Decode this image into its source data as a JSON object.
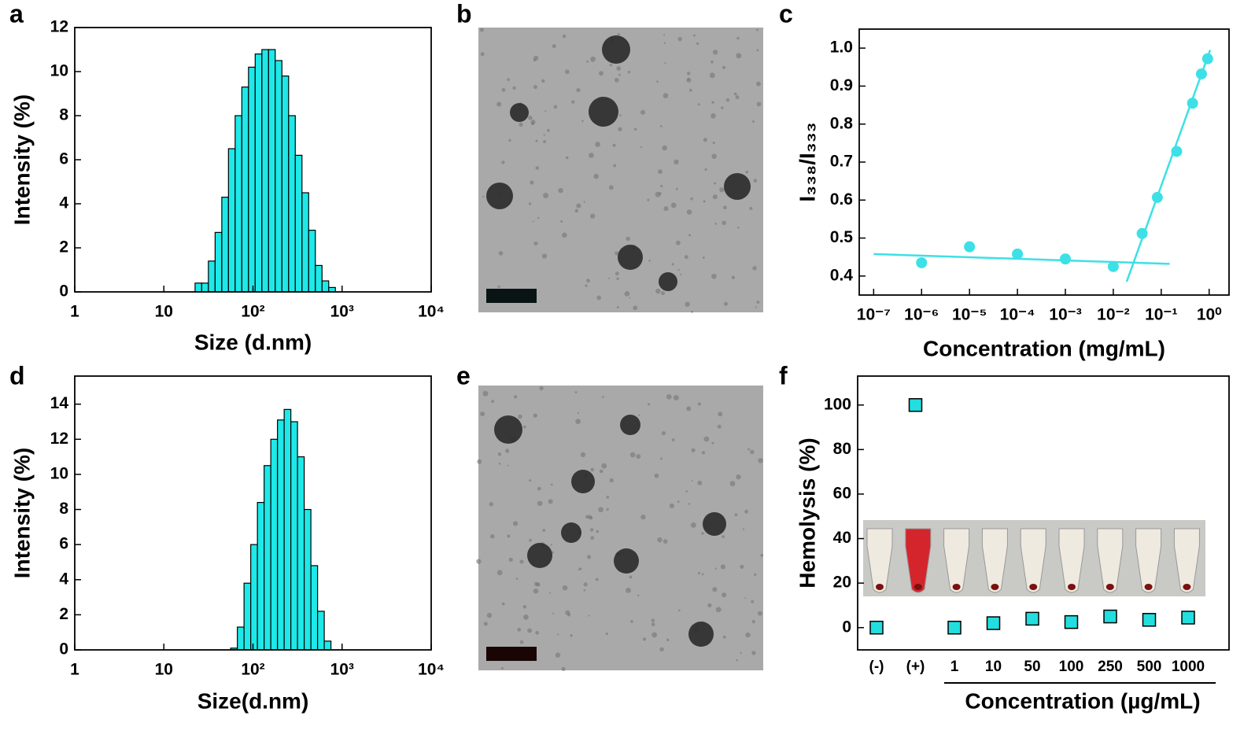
{
  "chart_data": [
    {
      "type": "histogram",
      "label": "a",
      "xlabel": "Size (d.nm)",
      "ylabel": "Intensity (%)",
      "log_x": true,
      "color": "#1ee8e8",
      "bins": [
        22.4,
        26.6,
        31.6,
        37.6,
        44.7,
        53.1,
        63.1,
        75.0,
        89.1,
        105.9,
        125.9,
        149.6,
        177.8,
        211.3,
        251.2,
        298.5,
        354.8,
        421.7,
        501.2,
        595.7,
        707.9,
        841.4
      ],
      "counts": [
        0.4,
        0.4,
        1.4,
        2.7,
        4.3,
        6.5,
        8.0,
        9.3,
        10.2,
        10.8,
        11.0,
        11.0,
        10.5,
        9.8,
        8.0,
        6.2,
        4.5,
        2.8,
        1.2,
        0.5,
        0.2
      ],
      "xlim": [
        1,
        10000
      ],
      "xticks": [
        1,
        10,
        {
          "value": 100,
          "label": "10²"
        },
        {
          "value": 1000,
          "label": "10³"
        },
        {
          "value": 10000,
          "label": "10⁴"
        }
      ],
      "ylim": [
        0,
        12
      ],
      "yticks": [
        0,
        2,
        4,
        6,
        8,
        10,
        12
      ]
    },
    {
      "type": "image",
      "label": "b"
    },
    {
      "type": "scatter",
      "label": "c",
      "xlabel": "Concentration (mg/mL)",
      "ylabel": "I₃₃₈/I₃₃₃",
      "log_x": true,
      "color": "#3de0e6",
      "x": [
        1e-06,
        1e-05,
        0.0001,
        0.001,
        0.01,
        0.04,
        0.083,
        0.21,
        0.45,
        0.69,
        0.93
      ],
      "values": [
        0.435,
        0.477,
        0.458,
        0.445,
        0.425,
        0.512,
        0.607,
        0.728,
        0.855,
        0.932,
        0.972
      ],
      "fit_lines": [
        {
          "x": [
            1e-07,
            0.15
          ],
          "values": [
            0.458,
            0.432
          ]
        },
        {
          "x": [
            0.019,
            1.05
          ],
          "values": [
            0.385,
            0.995
          ]
        }
      ],
      "xlim": [
        5e-08,
        2.6
      ],
      "xticks": [
        {
          "value": 1e-07,
          "label": "10⁻⁷"
        },
        {
          "value": 1e-06,
          "label": "10⁻⁶"
        },
        {
          "value": 1e-05,
          "label": "10⁻⁵"
        },
        {
          "value": 0.0001,
          "label": "10⁻⁴"
        },
        {
          "value": 0.001,
          "label": "10⁻³"
        },
        {
          "value": 0.01,
          "label": "10⁻²"
        },
        {
          "value": 0.1,
          "label": "10⁻¹"
        },
        {
          "value": 1,
          "label": "10⁰"
        }
      ],
      "ylim": [
        0.35,
        1.05
      ],
      "yticks": [
        0.4,
        0.5,
        0.6,
        0.7,
        0.8,
        0.9,
        {
          "value": 1,
          "label": "1.0"
        }
      ]
    },
    {
      "type": "histogram",
      "label": "d",
      "xlabel": "Size(d.nm)",
      "ylabel": "Intensity (%)",
      "log_x": true,
      "color": "#1ee8e8",
      "bins": [
        56.2,
        66.8,
        79.4,
        94.4,
        112.2,
        133.4,
        158.5,
        188.4,
        223.9,
        266.1,
        316.2,
        375.8,
        446.7,
        530.9,
        631.0,
        749.9
      ],
      "counts": [
        0.1,
        1.3,
        3.8,
        6.0,
        8.4,
        10.5,
        12.0,
        13.1,
        13.7,
        13.0,
        11.0,
        8.0,
        4.8,
        2.2,
        0.5
      ],
      "xlim": [
        1,
        10000
      ],
      "xticks": [
        1,
        10,
        {
          "value": 100,
          "label": "10²"
        },
        {
          "value": 1000,
          "label": "10³"
        },
        {
          "value": 10000,
          "label": "10⁴"
        }
      ],
      "ylim": [
        0,
        15.6
      ],
      "yticks": [
        0,
        2,
        4,
        6,
        8,
        10,
        12,
        14
      ]
    },
    {
      "type": "image",
      "label": "e"
    },
    {
      "type": "scatter",
      "label": "f",
      "xlabel": "Concentration (µg/mL)",
      "ylabel": "Hemolysis (%)",
      "color": "#22dede",
      "categories": [
        "(-)",
        "(+)",
        "1",
        "10",
        "50",
        "100",
        "250",
        "500",
        "1000"
      ],
      "values": [
        0,
        100,
        0,
        2,
        4,
        2.5,
        5,
        3.5,
        4.5
      ],
      "ylim": [
        -10,
        113
      ],
      "yticks": [
        0,
        20,
        40,
        60,
        80,
        100
      ]
    }
  ]
}
